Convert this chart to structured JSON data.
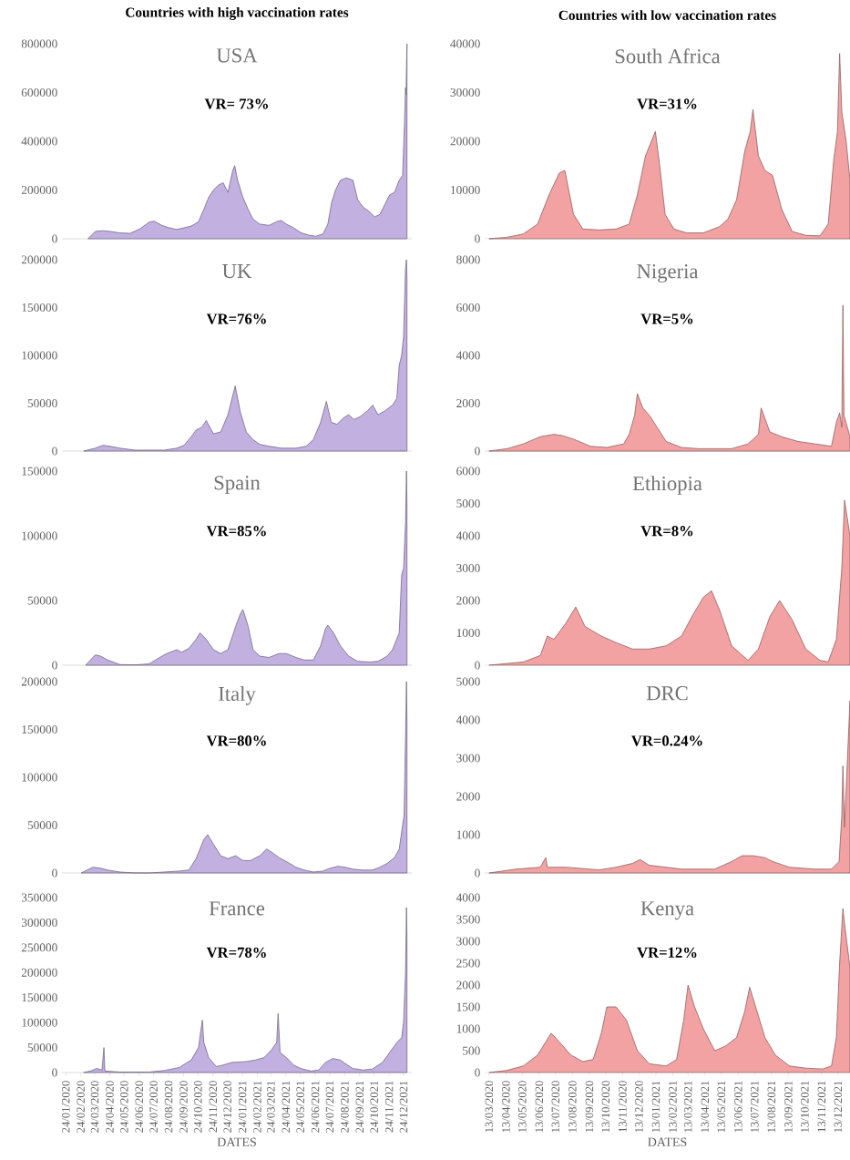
{
  "chart_data": [
    {
      "type": "area",
      "title": "USA",
      "subtitle": "VR= 73%",
      "annotations": [
        "Countries with high vaccination rates"
      ],
      "tick_labels": "y",
      "color": "#c2b0e0",
      "xlim": [
        "2020-01-16",
        "2022-01-10"
      ],
      "ylim": [
        0,
        800000
      ],
      "yticks": [
        0,
        200000,
        400000,
        600000,
        800000
      ],
      "x": [
        "2020-03-10",
        "2020-03-25",
        "2020-04-10",
        "2020-04-25",
        "2020-05-15",
        "2020-06-05",
        "2020-06-25",
        "2020-07-15",
        "2020-07-25",
        "2020-08-10",
        "2020-08-25",
        "2020-09-10",
        "2020-09-25",
        "2020-10-10",
        "2020-10-25",
        "2020-11-05",
        "2020-11-15",
        "2020-11-25",
        "2020-12-05",
        "2020-12-15",
        "2020-12-25",
        "2021-01-04",
        "2021-01-08",
        "2021-01-14",
        "2021-01-25",
        "2021-02-05",
        "2021-02-15",
        "2021-03-01",
        "2021-03-20",
        "2021-04-05",
        "2021-04-15",
        "2021-04-25",
        "2021-05-10",
        "2021-05-25",
        "2021-06-10",
        "2021-06-25",
        "2021-07-10",
        "2021-07-20",
        "2021-07-28",
        "2021-08-05",
        "2021-08-15",
        "2021-08-28",
        "2021-09-10",
        "2021-09-20",
        "2021-10-01",
        "2021-10-15",
        "2021-10-25",
        "2021-11-05",
        "2021-11-15",
        "2021-11-25",
        "2021-12-05",
        "2021-12-15",
        "2021-12-22",
        "2021-12-26",
        "2021-12-28",
        "2021-12-29",
        "2021-12-31"
      ],
      "values": [
        0,
        30000,
        33000,
        30000,
        24000,
        22000,
        40000,
        68000,
        72000,
        55000,
        45000,
        38000,
        45000,
        52000,
        70000,
        120000,
        170000,
        200000,
        220000,
        230000,
        190000,
        280000,
        300000,
        240000,
        170000,
        120000,
        80000,
        60000,
        55000,
        70000,
        75000,
        60000,
        45000,
        25000,
        15000,
        10000,
        20000,
        60000,
        150000,
        200000,
        240000,
        250000,
        240000,
        160000,
        130000,
        110000,
        90000,
        100000,
        140000,
        180000,
        190000,
        240000,
        260000,
        480000,
        620000,
        590000,
        800000
      ]
    },
    {
      "type": "area",
      "title": "South Africa",
      "subtitle": "VR=31%",
      "annotations": [
        "Countries with low vaccination rates"
      ],
      "tick_labels": "y",
      "color": "#f2a2a2",
      "xlim": [
        "2020-03-05",
        "2022-01-04"
      ],
      "ylim": [
        0,
        40000
      ],
      "yticks": [
        0,
        10000,
        20000,
        30000,
        40000
      ],
      "x": [
        "2020-03-13",
        "2020-04-15",
        "2020-05-15",
        "2020-06-10",
        "2020-07-01",
        "2020-07-20",
        "2020-07-30",
        "2020-08-15",
        "2020-09-01",
        "2020-10-01",
        "2020-11-01",
        "2020-11-25",
        "2020-12-10",
        "2020-12-25",
        "2021-01-12",
        "2021-01-20",
        "2021-01-30",
        "2021-02-15",
        "2021-03-10",
        "2021-04-10",
        "2021-05-10",
        "2021-05-25",
        "2021-06-10",
        "2021-06-25",
        "2021-07-05",
        "2021-07-10",
        "2021-07-20",
        "2021-08-01",
        "2021-08-15",
        "2021-09-01",
        "2021-09-20",
        "2021-10-15",
        "2021-11-10",
        "2021-11-25",
        "2021-12-05",
        "2021-12-12",
        "2021-12-16",
        "2021-12-20",
        "2021-12-28",
        "2022-01-04"
      ],
      "values": [
        0,
        300,
        1000,
        3000,
        9000,
        13500,
        14000,
        5000,
        2000,
        1800,
        2000,
        3000,
        9000,
        17000,
        22000,
        15000,
        5000,
        2000,
        1200,
        1200,
        2500,
        4000,
        8000,
        18000,
        22000,
        26500,
        17000,
        14000,
        13000,
        6000,
        1500,
        700,
        600,
        3000,
        16000,
        22000,
        38000,
        26000,
        20000,
        12000
      ]
    },
    {
      "type": "area",
      "title": "UK",
      "subtitle": "VR=76%",
      "tick_labels": "y",
      "color": "#c2b0e0",
      "xlim": [
        "2020-01-16",
        "2022-01-10"
      ],
      "ylim": [
        0,
        200000
      ],
      "yticks": [
        0,
        50000,
        100000,
        150000,
        200000
      ],
      "x": [
        "2020-03-01",
        "2020-03-25",
        "2020-04-10",
        "2020-04-25",
        "2020-05-15",
        "2020-06-15",
        "2020-07-15",
        "2020-08-15",
        "2020-09-10",
        "2020-09-25",
        "2020-10-10",
        "2020-10-20",
        "2020-11-01",
        "2020-11-10",
        "2020-11-25",
        "2020-12-10",
        "2020-12-25",
        "2021-01-05",
        "2021-01-09",
        "2021-01-20",
        "2021-02-01",
        "2021-02-15",
        "2021-03-01",
        "2021-03-20",
        "2021-04-15",
        "2021-05-15",
        "2021-06-05",
        "2021-06-20",
        "2021-07-05",
        "2021-07-17",
        "2021-07-27",
        "2021-08-08",
        "2021-08-20",
        "2021-09-01",
        "2021-09-12",
        "2021-09-25",
        "2021-10-10",
        "2021-10-21",
        "2021-11-01",
        "2021-11-15",
        "2021-12-01",
        "2021-12-10",
        "2021-12-15",
        "2021-12-20",
        "2021-12-24",
        "2021-12-28",
        "2021-12-30",
        "2021-12-31"
      ],
      "values": [
        0,
        3000,
        6000,
        5000,
        3000,
        1000,
        1000,
        1000,
        3000,
        6000,
        15000,
        22000,
        25000,
        32000,
        18000,
        20000,
        38000,
        60000,
        68000,
        40000,
        20000,
        12000,
        7000,
        5000,
        3000,
        3000,
        5000,
        12000,
        30000,
        52000,
        30000,
        28000,
        34000,
        38000,
        33000,
        36000,
        42000,
        48000,
        38000,
        42000,
        48000,
        55000,
        90000,
        100000,
        120000,
        190000,
        200000,
        180000
      ]
    },
    {
      "type": "area",
      "title": "Nigeria",
      "subtitle": "VR=5%",
      "tick_labels": "y",
      "color": "#f2a2a2",
      "xlim": [
        "2020-03-05",
        "2022-01-04"
      ],
      "ylim": [
        0,
        8000
      ],
      "yticks": [
        0,
        2000,
        4000,
        6000,
        8000
      ],
      "x": [
        "2020-03-13",
        "2020-04-15",
        "2020-05-15",
        "2020-06-15",
        "2020-07-10",
        "2020-07-25",
        "2020-08-15",
        "2020-09-15",
        "2020-10-15",
        "2020-11-15",
        "2020-11-25",
        "2020-12-05",
        "2020-12-10",
        "2020-12-20",
        "2021-01-01",
        "2021-01-15",
        "2021-02-01",
        "2021-03-01",
        "2021-04-01",
        "2021-05-01",
        "2021-06-01",
        "2021-07-01",
        "2021-07-20",
        "2021-07-25",
        "2021-08-10",
        "2021-09-01",
        "2021-10-01",
        "2021-11-01",
        "2021-12-01",
        "2021-12-10",
        "2021-12-16",
        "2021-12-20",
        "2021-12-22",
        "2021-12-24",
        "2022-01-04"
      ],
      "values": [
        0,
        100,
        300,
        600,
        700,
        650,
        500,
        200,
        150,
        300,
        700,
        1500,
        2400,
        1800,
        1500,
        1000,
        400,
        150,
        100,
        100,
        100,
        300,
        700,
        1800,
        800,
        600,
        400,
        300,
        200,
        1200,
        1600,
        1000,
        6100,
        1500,
        600
      ]
    },
    {
      "type": "area",
      "title": "Spain",
      "subtitle": "VR=85%",
      "tick_labels": "y",
      "color": "#c2b0e0",
      "xlim": [
        "2020-01-16",
        "2022-01-10"
      ],
      "ylim": [
        0,
        150000
      ],
      "yticks": [
        0,
        50000,
        100000,
        150000
      ],
      "x": [
        "2020-03-05",
        "2020-03-25",
        "2020-04-05",
        "2020-04-20",
        "2020-05-15",
        "2020-06-15",
        "2020-07-15",
        "2020-08-01",
        "2020-08-20",
        "2020-09-10",
        "2020-09-20",
        "2020-10-05",
        "2020-10-20",
        "2020-10-28",
        "2020-11-10",
        "2020-11-25",
        "2020-12-10",
        "2020-12-25",
        "2021-01-10",
        "2021-01-20",
        "2021-01-25",
        "2021-02-05",
        "2021-02-15",
        "2021-03-01",
        "2021-03-20",
        "2021-04-10",
        "2021-04-25",
        "2021-05-15",
        "2021-06-01",
        "2021-06-20",
        "2021-07-05",
        "2021-07-15",
        "2021-07-20",
        "2021-08-01",
        "2021-08-15",
        "2021-09-01",
        "2021-09-20",
        "2021-10-15",
        "2021-11-01",
        "2021-11-20",
        "2021-12-01",
        "2021-12-15",
        "2021-12-20",
        "2021-12-24",
        "2021-12-28",
        "2021-12-30",
        "2021-12-31"
      ],
      "values": [
        0,
        8000,
        7000,
        4000,
        500,
        300,
        1000,
        5000,
        9000,
        12000,
        10000,
        13000,
        20000,
        25000,
        20000,
        12000,
        9000,
        12000,
        30000,
        40000,
        43000,
        30000,
        12000,
        7000,
        6000,
        9000,
        9000,
        6000,
        4000,
        4000,
        15000,
        28000,
        31000,
        25000,
        15000,
        7000,
        3000,
        2500,
        3000,
        7000,
        12000,
        25000,
        70000,
        75000,
        110000,
        150000,
        125000
      ]
    },
    {
      "type": "area",
      "title": "Ethiopia",
      "subtitle": "VR=8%",
      "tick_labels": "y",
      "color": "#f2a2a2",
      "xlim": [
        "2020-03-05",
        "2022-01-04"
      ],
      "ylim": [
        0,
        6000
      ],
      "yticks": [
        0,
        1000,
        2000,
        3000,
        4000,
        5000,
        6000
      ],
      "x": [
        "2020-03-13",
        "2020-05-15",
        "2020-06-15",
        "2020-06-28",
        "2020-07-10",
        "2020-08-01",
        "2020-08-19",
        "2020-09-05",
        "2020-10-05",
        "2020-11-01",
        "2020-12-01",
        "2021-01-01",
        "2021-02-01",
        "2021-03-01",
        "2021-03-20",
        "2021-04-10",
        "2021-04-25",
        "2021-05-10",
        "2021-06-01",
        "2021-07-01",
        "2021-07-20",
        "2021-08-10",
        "2021-08-28",
        "2021-09-20",
        "2021-10-15",
        "2021-11-10",
        "2021-11-25",
        "2021-12-10",
        "2021-12-20",
        "2021-12-25",
        "2022-01-04"
      ],
      "values": [
        0,
        100,
        300,
        900,
        800,
        1300,
        1800,
        1200,
        900,
        700,
        500,
        500,
        600,
        900,
        1500,
        2100,
        2300,
        1700,
        600,
        150,
        500,
        1500,
        2000,
        1400,
        500,
        150,
        100,
        800,
        3000,
        5100,
        4000
      ]
    },
    {
      "type": "area",
      "title": "Italy",
      "subtitle": "VR=80%",
      "tick_labels": "y",
      "color": "#c2b0e0",
      "xlim": [
        "2020-01-16",
        "2022-01-10"
      ],
      "ylim": [
        0,
        200000
      ],
      "yticks": [
        0,
        50000,
        100000,
        150000,
        200000
      ],
      "x": [
        "2020-02-25",
        "2020-03-20",
        "2020-04-05",
        "2020-04-20",
        "2020-05-15",
        "2020-06-15",
        "2020-07-15",
        "2020-08-15",
        "2020-09-15",
        "2020-10-05",
        "2020-10-20",
        "2020-11-05",
        "2020-11-13",
        "2020-11-25",
        "2020-12-10",
        "2020-12-25",
        "2021-01-10",
        "2021-01-25",
        "2021-02-10",
        "2021-03-01",
        "2021-03-15",
        "2021-03-25",
        "2021-04-10",
        "2021-04-25",
        "2021-05-15",
        "2021-06-01",
        "2021-06-20",
        "2021-07-10",
        "2021-07-25",
        "2021-08-10",
        "2021-08-25",
        "2021-09-10",
        "2021-10-01",
        "2021-10-20",
        "2021-11-05",
        "2021-11-20",
        "2021-12-05",
        "2021-12-15",
        "2021-12-22",
        "2021-12-25",
        "2021-12-28",
        "2021-12-30",
        "2021-12-31"
      ],
      "values": [
        0,
        6000,
        5000,
        3000,
        1000,
        0,
        0,
        1000,
        2000,
        3000,
        15000,
        35000,
        40000,
        30000,
        18000,
        15000,
        18000,
        13000,
        13000,
        18000,
        25000,
        22000,
        16000,
        12000,
        6000,
        3000,
        1000,
        2000,
        5000,
        7000,
        6000,
        4000,
        3000,
        3000,
        6000,
        10000,
        16000,
        25000,
        50000,
        60000,
        140000,
        200000,
        160000
      ]
    },
    {
      "type": "area",
      "title": "DRC",
      "subtitle": "VR=0.24%",
      "tick_labels": "y",
      "color": "#f2a2a2",
      "xlim": [
        "2020-03-05",
        "2022-01-04"
      ],
      "ylim": [
        0,
        5000
      ],
      "yticks": [
        0,
        1000,
        2000,
        3000,
        4000,
        5000
      ],
      "x": [
        "2020-03-13",
        "2020-05-01",
        "2020-06-15",
        "2020-06-25",
        "2020-06-28",
        "2020-08-01",
        "2020-10-01",
        "2020-11-01",
        "2020-12-01",
        "2020-12-15",
        "2021-01-01",
        "2021-02-01",
        "2021-03-01",
        "2021-05-01",
        "2021-06-01",
        "2021-06-20",
        "2021-07-10",
        "2021-08-01",
        "2021-08-15",
        "2021-09-15",
        "2021-11-01",
        "2021-12-01",
        "2021-12-15",
        "2021-12-20",
        "2021-12-22",
        "2021-12-25",
        "2021-12-28",
        "2022-01-04"
      ],
      "values": [
        0,
        100,
        150,
        400,
        150,
        150,
        80,
        150,
        250,
        350,
        200,
        150,
        100,
        100,
        300,
        450,
        450,
        400,
        300,
        150,
        100,
        100,
        300,
        1500,
        2800,
        1200,
        2200,
        4500
      ]
    },
    {
      "type": "area",
      "title": "France",
      "subtitle": "VR=78%",
      "xlabel": "DATES",
      "color": "#c2b0e0",
      "xlim": [
        "2020-01-16",
        "2022-01-10"
      ],
      "ylim": [
        0,
        350000
      ],
      "yticks": [
        0,
        50000,
        100000,
        150000,
        200000,
        250000,
        300000,
        350000
      ],
      "xticks": [
        {
          "value": "2020-01-24",
          "label": "24/01/2020"
        },
        {
          "value": "2020-02-24",
          "label": "24/02/2020"
        },
        {
          "value": "2020-03-24",
          "label": "24/03/2020"
        },
        {
          "value": "2020-04-24",
          "label": "24/04/2020"
        },
        {
          "value": "2020-05-24",
          "label": "24/05/2020"
        },
        {
          "value": "2020-06-24",
          "label": "24/06/2020"
        },
        {
          "value": "2020-07-24",
          "label": "24/07/2020"
        },
        {
          "value": "2020-08-24",
          "label": "24/08/2020"
        },
        {
          "value": "2020-09-24",
          "label": "24/09/2020"
        },
        {
          "value": "2020-10-24",
          "label": "24/10/2020"
        },
        {
          "value": "2020-11-24",
          "label": "24/11/2020"
        },
        {
          "value": "2020-12-24",
          "label": "24/12/2020"
        },
        {
          "value": "2021-01-24",
          "label": "24/01/2021"
        },
        {
          "value": "2021-02-24",
          "label": "24/02/2021"
        },
        {
          "value": "2021-03-24",
          "label": "24/03/2021"
        },
        {
          "value": "2021-04-24",
          "label": "24/04/2021"
        },
        {
          "value": "2021-05-24",
          "label": "24/05/2021"
        },
        {
          "value": "2021-06-24",
          "label": "24/06/2021"
        },
        {
          "value": "2021-07-24",
          "label": "24/07/2021"
        },
        {
          "value": "2021-08-24",
          "label": "24/08/2021"
        },
        {
          "value": "2021-09-24",
          "label": "24/09/2021"
        },
        {
          "value": "2021-10-24",
          "label": "24/10/2021"
        },
        {
          "value": "2021-11-24",
          "label": "24/11/2021"
        },
        {
          "value": "2021-12-24",
          "label": "24/12/2021"
        }
      ],
      "x": [
        "2020-03-01",
        "2020-03-15",
        "2020-03-28",
        "2020-04-08",
        "2020-04-12",
        "2020-04-14",
        "2020-05-15",
        "2020-06-15",
        "2020-07-15",
        "2020-08-15",
        "2020-09-15",
        "2020-10-10",
        "2020-10-25",
        "2020-11-02",
        "2020-11-05",
        "2020-11-15",
        "2020-12-01",
        "2020-12-15",
        "2021-01-01",
        "2021-02-01",
        "2021-02-20",
        "2021-03-10",
        "2021-03-25",
        "2021-04-05",
        "2021-04-08",
        "2021-04-12",
        "2021-04-25",
        "2021-05-10",
        "2021-05-25",
        "2021-06-15",
        "2021-07-01",
        "2021-07-15",
        "2021-07-30",
        "2021-08-15",
        "2021-08-25",
        "2021-09-10",
        "2021-10-01",
        "2021-10-20",
        "2021-11-10",
        "2021-11-25",
        "2021-12-10",
        "2021-12-20",
        "2021-12-24",
        "2021-12-28",
        "2021-12-30",
        "2021-12-31"
      ],
      "values": [
        0,
        3000,
        8000,
        5000,
        50000,
        3000,
        1000,
        1000,
        1000,
        4000,
        10000,
        25000,
        50000,
        105000,
        60000,
        30000,
        12000,
        15000,
        20000,
        22000,
        25000,
        30000,
        45000,
        60000,
        118000,
        40000,
        30000,
        15000,
        8000,
        3000,
        5000,
        20000,
        28000,
        25000,
        18000,
        8000,
        5000,
        7000,
        20000,
        40000,
        60000,
        70000,
        100000,
        200000,
        330000,
        270000
      ]
    },
    {
      "type": "area",
      "title": "Kenya",
      "subtitle": "VR=12%",
      "xlabel": "DATES",
      "color": "#f2a2a2",
      "xlim": [
        "2020-03-05",
        "2022-01-04"
      ],
      "ylim": [
        0,
        4000
      ],
      "yticks": [
        0,
        500,
        1000,
        1500,
        2000,
        2500,
        3000,
        3500,
        4000
      ],
      "xticks": [
        {
          "value": "2020-03-13",
          "label": "13/03/2020"
        },
        {
          "value": "2020-04-13",
          "label": "13/04/2020"
        },
        {
          "value": "2020-05-13",
          "label": "13/05/2020"
        },
        {
          "value": "2020-06-13",
          "label": "13/06/2020"
        },
        {
          "value": "2020-07-13",
          "label": "13/07/2020"
        },
        {
          "value": "2020-08-13",
          "label": "13/08/2020"
        },
        {
          "value": "2020-09-13",
          "label": "13/09/2020"
        },
        {
          "value": "2020-10-13",
          "label": "13/10/2020"
        },
        {
          "value": "2020-11-13",
          "label": "13/11/2020"
        },
        {
          "value": "2020-12-13",
          "label": "13/12/2020"
        },
        {
          "value": "2021-01-13",
          "label": "13/01/2021"
        },
        {
          "value": "2021-02-13",
          "label": "13/02/2021"
        },
        {
          "value": "2021-03-13",
          "label": "13/03/2021"
        },
        {
          "value": "2021-04-13",
          "label": "13/04/2021"
        },
        {
          "value": "2021-05-13",
          "label": "13/05/2021"
        },
        {
          "value": "2021-06-13",
          "label": "13/06/2021"
        },
        {
          "value": "2021-07-13",
          "label": "13/07/2021"
        },
        {
          "value": "2021-08-13",
          "label": "13/08/2021"
        },
        {
          "value": "2021-09-13",
          "label": "13/09/2021"
        },
        {
          "value": "2021-10-13",
          "label": "13/10/2021"
        },
        {
          "value": "2021-11-13",
          "label": "13/11/2021"
        },
        {
          "value": "2021-12-13",
          "label": "13/12/2021"
        }
      ],
      "x": [
        "2020-03-13",
        "2020-04-15",
        "2020-05-15",
        "2020-06-10",
        "2020-06-25",
        "2020-07-05",
        "2020-07-20",
        "2020-08-10",
        "2020-09-01",
        "2020-09-20",
        "2020-10-05",
        "2020-10-15",
        "2020-11-01",
        "2020-11-20",
        "2020-12-10",
        "2021-01-01",
        "2021-02-01",
        "2021-02-20",
        "2021-03-05",
        "2021-03-13",
        "2021-03-25",
        "2021-04-10",
        "2021-05-01",
        "2021-05-20",
        "2021-06-10",
        "2021-06-25",
        "2021-07-04",
        "2021-07-15",
        "2021-08-01",
        "2021-08-20",
        "2021-09-15",
        "2021-10-15",
        "2021-11-15",
        "2021-12-01",
        "2021-12-10",
        "2021-12-16",
        "2021-12-22",
        "2021-12-26",
        "2022-01-04"
      ],
      "values": [
        0,
        50,
        150,
        400,
        700,
        900,
        700,
        400,
        250,
        300,
        900,
        1500,
        1500,
        1200,
        500,
        200,
        150,
        300,
        1200,
        2000,
        1500,
        1000,
        500,
        600,
        800,
        1400,
        1950,
        1500,
        800,
        400,
        150,
        100,
        80,
        150,
        800,
        2500,
        3750,
        3300,
        2400
      ]
    }
  ]
}
